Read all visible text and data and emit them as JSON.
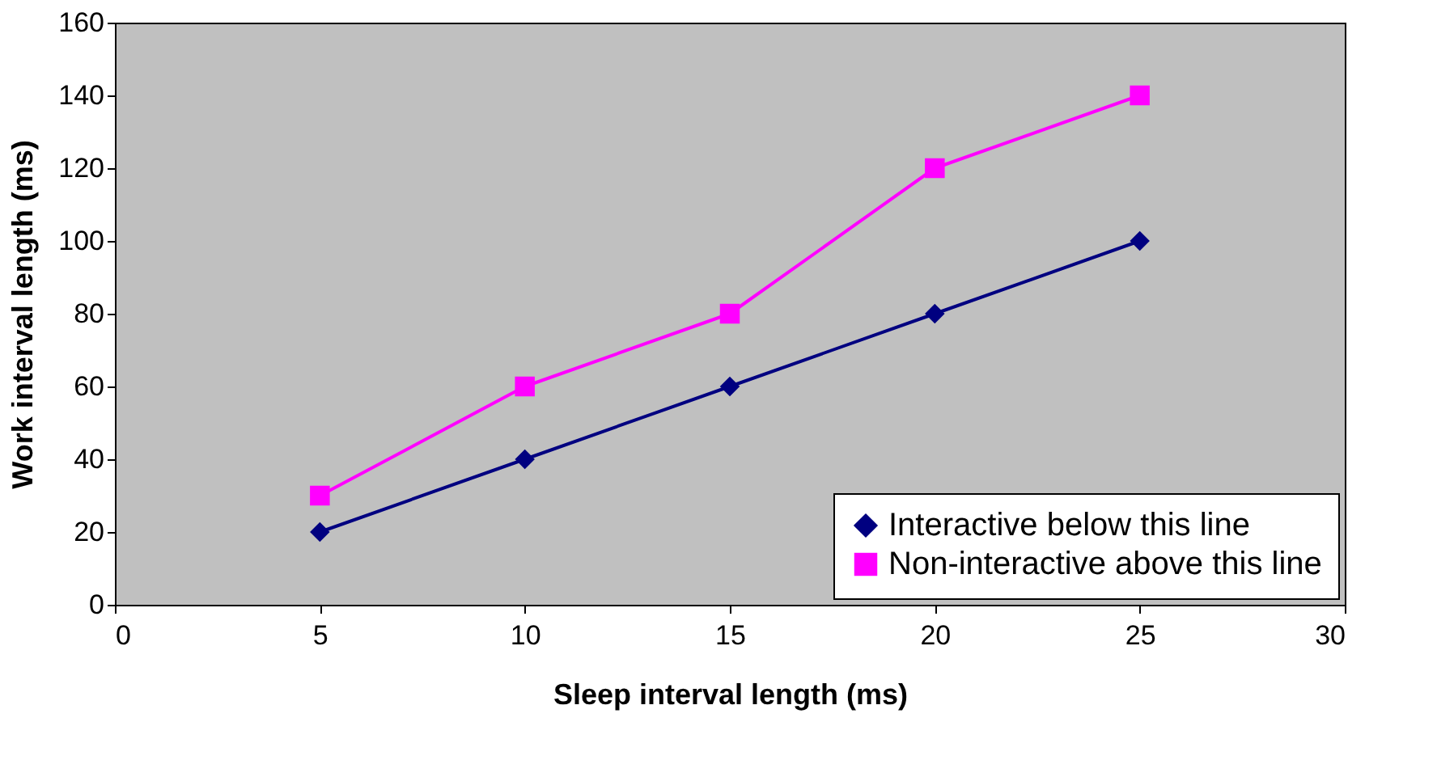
{
  "chart_data": {
    "type": "line",
    "xlabel": "Sleep interval length (ms)",
    "ylabel": "Work interval length (ms)",
    "x": [
      5,
      10,
      15,
      20,
      25
    ],
    "series": [
      {
        "name": "Interactive below this line",
        "color": "#000080",
        "marker": "diamond",
        "values": [
          20,
          40,
          60,
          80,
          100
        ]
      },
      {
        "name": "Non-interactive above this line",
        "color": "#ff00ff",
        "marker": "square",
        "values": [
          30,
          60,
          80,
          120,
          140
        ]
      }
    ],
    "xlim": [
      0,
      30
    ],
    "xticks": [
      0,
      5,
      10,
      15,
      20,
      25,
      30
    ],
    "ylim": [
      0,
      160
    ],
    "yticks": [
      0,
      20,
      40,
      60,
      80,
      100,
      120,
      140,
      160
    ],
    "grid": false,
    "legend": "bottom right",
    "line_style": "solid"
  }
}
